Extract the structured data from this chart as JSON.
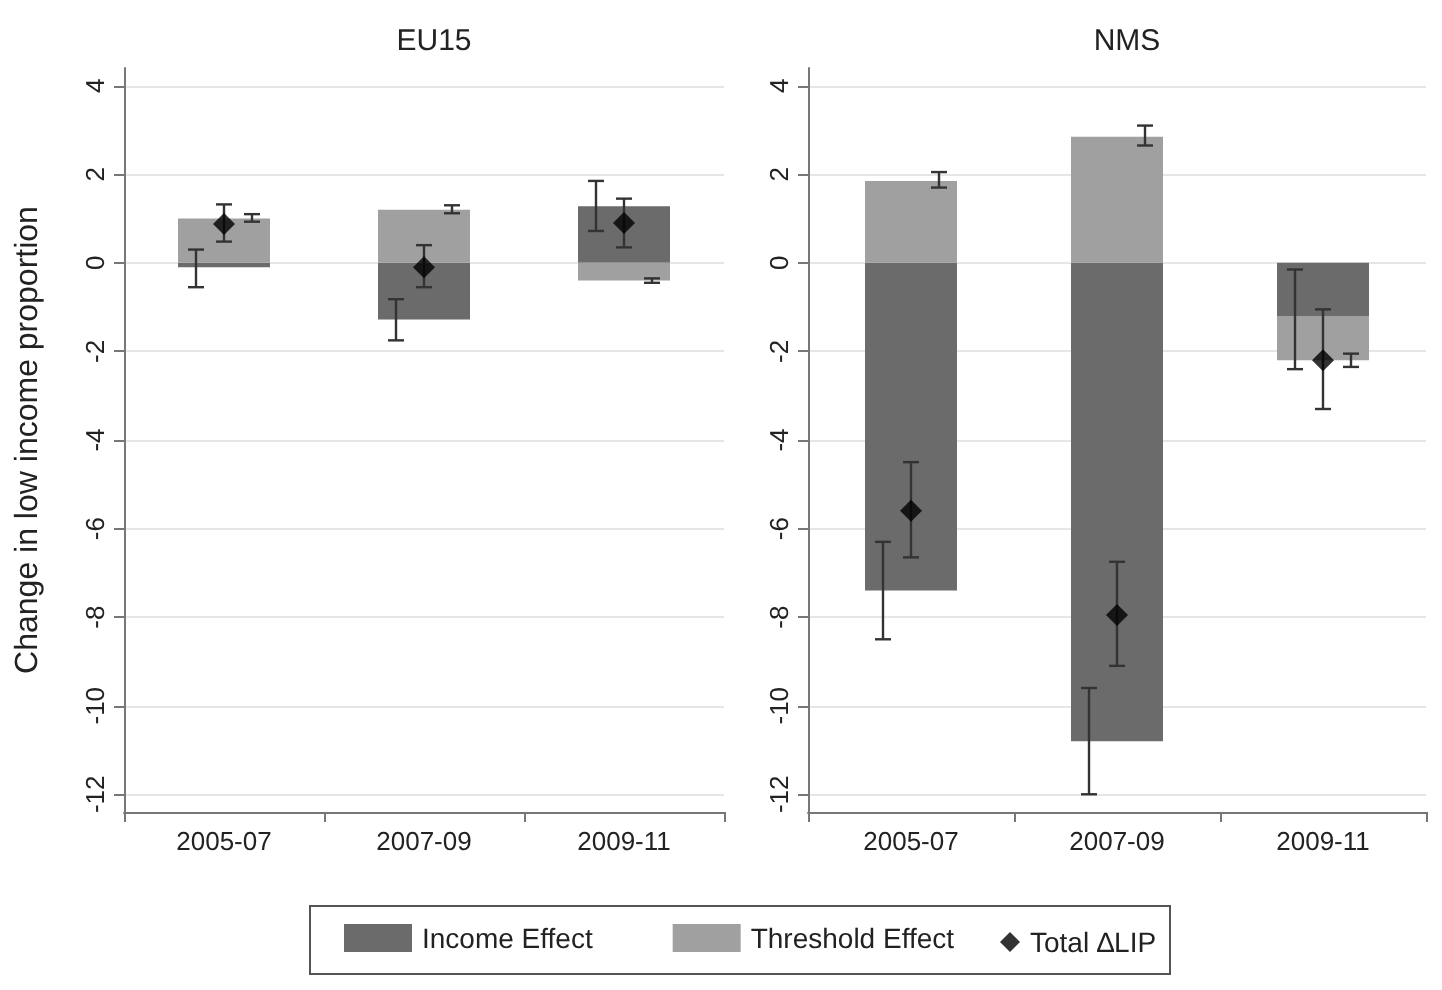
{
  "chart_data": [
    {
      "type": "bar",
      "stacked": true,
      "title": "EU15",
      "ylabel": "Change in low income proportion",
      "categories": [
        "2005-07",
        "2007-09",
        "2009-11"
      ],
      "ylim": [
        -12.4,
        4.4
      ],
      "yticks": [
        -12,
        -10,
        -8,
        -6,
        -4,
        -2,
        0,
        2,
        4
      ],
      "grid": "y",
      "legend": "bottom",
      "series": [
        {
          "name": "Income Effect",
          "color": "#6b6b6b",
          "values": [
            -0.1,
            -1.28,
            1.28
          ],
          "errors": [
            [
              -0.55,
              0.3
            ],
            [
              -1.75,
              -0.82
            ],
            [
              0.72,
              1.85
            ]
          ]
        },
        {
          "name": "Threshold Effect",
          "color": "#a0a0a0",
          "values": [
            1.0,
            1.2,
            -0.4
          ],
          "errors": [
            [
              0.93,
              1.1
            ],
            [
              1.12,
              1.3
            ],
            [
              -0.45,
              -0.35
            ]
          ]
        },
        {
          "name": "Total ∆LIP",
          "type": "scatter",
          "marker": "diamond",
          "color": "#000000",
          "values": [
            0.88,
            -0.1,
            0.9
          ],
          "errors": [
            [
              0.48,
              1.32
            ],
            [
              -0.55,
              0.4
            ],
            [
              0.35,
              1.45
            ]
          ]
        }
      ]
    },
    {
      "type": "bar",
      "stacked": true,
      "title": "NMS",
      "categories": [
        "2005-07",
        "2007-09",
        "2009-11"
      ],
      "ylim": [
        -12.4,
        4.4
      ],
      "yticks": [
        -12,
        -10,
        -8,
        -6,
        -4,
        -2,
        0,
        2,
        4
      ],
      "grid": "y",
      "series": [
        {
          "color": "#6b6b6b",
          "values": [
            -7.4,
            -10.8,
            -1.2
          ],
          "errors": [
            [
              -8.5,
              -6.3
            ],
            [
              -12,
              -9.6
            ],
            [
              -2.4,
              -0.15
            ]
          ]
        },
        {
          "color": "#a0a0a0",
          "values": [
            1.85,
            2.85,
            -1.0
          ],
          "errors": [
            [
              1.7,
              2.05
            ],
            [
              2.65,
              3.1
            ],
            [
              -2.35,
              -2.05
            ]
          ]
        },
        {
          "type": "scatter",
          "marker": "diamond",
          "color": "#000000",
          "values": [
            -5.6,
            -7.95,
            -2.2
          ],
          "errors": [
            [
              -6.65,
              -4.5
            ],
            [
              -9.1,
              -6.75
            ],
            [
              -3.3,
              -1.05
            ]
          ]
        }
      ]
    }
  ]
}
